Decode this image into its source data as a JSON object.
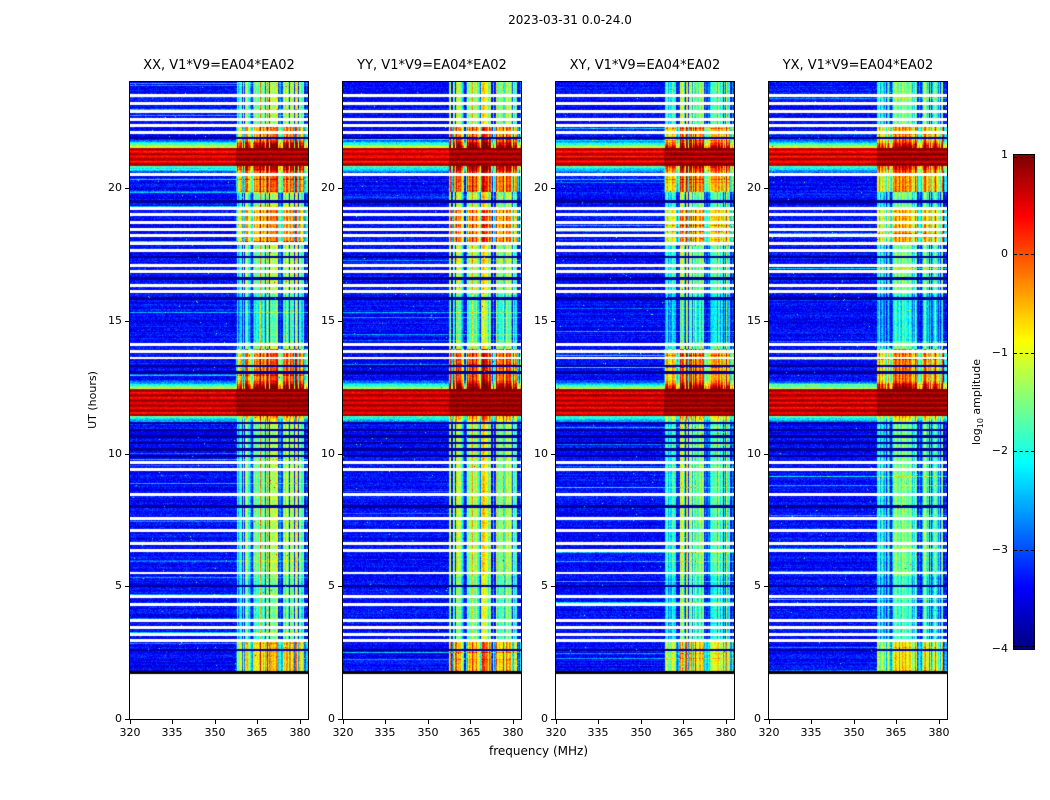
{
  "figure_title": "2023-03-31 0.0-24.0",
  "chart_data": {
    "type": "heatmap",
    "description": "Dynamic spectra (waterfall plots) of interferometer baseline V1*V9=EA04*EA02 for four polarization products, frequency vs UT, color = log10 amplitude, jet colormap",
    "panels": [
      {
        "key": "xx",
        "title": "XX, V1*V9=EA04*EA02",
        "seed": 101,
        "crosspol": false
      },
      {
        "key": "yy",
        "title": "YY, V1*V9=EA04*EA02",
        "seed": 202,
        "crosspol": false
      },
      {
        "key": "xy",
        "title": "XY, V1*V9=EA04*EA02",
        "seed": 303,
        "crosspol": true
      },
      {
        "key": "yx",
        "title": "YX, V1*V9=EA04*EA02",
        "seed": 404,
        "crosspol": true
      }
    ],
    "xlabel": "frequency (MHz)",
    "ylabel": "UT (hours)",
    "xlim": [
      320,
      383
    ],
    "ylim": [
      0,
      24
    ],
    "x_ticks": [
      320,
      335,
      350,
      365,
      380
    ],
    "y_ticks": [
      0,
      5,
      10,
      15,
      20
    ],
    "colormap": "jet",
    "colorbar": {
      "label": "log10 amplitude",
      "label_prefix": "log",
      "label_sub": "10",
      "label_suffix": " amplitude",
      "ticks": [
        1,
        0,
        -1,
        -2,
        -3,
        -4
      ],
      "vmin": -4,
      "vmax": 1
    },
    "features": {
      "no_data_below_ut": 1.7,
      "rfi_band_mhz": [
        357.5,
        383
      ],
      "broadband_bursts_ut": [
        [
          11.4,
          12.42,
          0.62
        ],
        [
          20.82,
          21.52,
          0.55
        ]
      ],
      "rfi_enhanced_ut": [
        [
          1.7,
          2.9,
          0.75
        ],
        [
          3.0,
          5.4,
          -0.3
        ],
        [
          12.42,
          13.95,
          1.35
        ],
        [
          14.2,
          16.0,
          -0.45
        ],
        [
          17.9,
          19.3,
          1.05
        ],
        [
          19.85,
          20.82,
          1.25
        ],
        [
          21.52,
          22.35,
          1.15
        ]
      ],
      "data_gaps_ut": [
        2.95,
        3.2,
        3.45,
        3.7,
        4.3,
        4.6,
        5.5,
        6.35,
        6.6,
        7.1,
        7.55,
        8.45,
        9.4,
        9.65,
        13.6,
        13.85,
        14.1,
        16.1,
        16.35,
        16.85,
        17.1,
        17.65,
        17.9,
        18.2,
        18.45,
        18.7,
        19.0,
        19.25,
        20.5,
        22.1,
        22.35,
        22.6,
        22.9,
        23.2,
        23.5
      ],
      "dark_rows_ut": [
        2.6,
        5.0,
        8.0,
        9.9,
        10.15,
        10.4,
        10.65,
        10.9,
        11.15,
        13.05,
        13.3,
        15.85,
        16.6,
        17.4,
        19.5,
        21.9
      ]
    }
  }
}
